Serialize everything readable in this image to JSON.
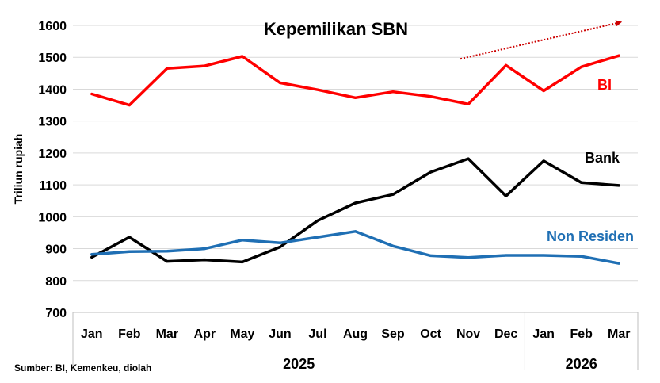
{
  "chart_data": {
    "type": "line",
    "title": "Kepemilikan SBN",
    "ylabel": "Triliun rupiah",
    "ylim": [
      700,
      1600
    ],
    "yticks": [
      700,
      800,
      900,
      1000,
      1100,
      1200,
      1300,
      1400,
      1500,
      1600
    ],
    "grid": true,
    "categories": [
      "Jan",
      "Feb",
      "Mar",
      "Apr",
      "May",
      "Jun",
      "Jul",
      "Aug",
      "Sep",
      "Oct",
      "Nov",
      "Dec",
      "Jan",
      "Feb",
      "Mar"
    ],
    "years": [
      {
        "label": "2025",
        "from": 0,
        "to": 11
      },
      {
        "label": "2026",
        "from": 12,
        "to": 14
      }
    ],
    "series": [
      {
        "name": "BI",
        "color": "#ff0000",
        "values": [
          1385,
          1350,
          1465,
          1473,
          1503,
          1420,
          1398,
          1373,
          1392,
          1377,
          1353,
          1475,
          1395,
          1470,
          1505
        ]
      },
      {
        "name": "Bank",
        "color": "#000000",
        "values": [
          873,
          936,
          860,
          865,
          858,
          905,
          988,
          1043,
          1070,
          1140,
          1182,
          1065,
          1175,
          1107,
          1098
        ]
      },
      {
        "name": "Non Residen",
        "color": "#1f6fb4",
        "values": [
          882,
          891,
          892,
          900,
          927,
          918,
          936,
          954,
          908,
          878,
          872,
          879,
          879,
          876,
          854
        ]
      }
    ],
    "trend_arrow": {
      "color": "#cc0000",
      "from": {
        "x": 10,
        "y": 1495
      },
      "to": {
        "x": 14,
        "y": 1610
      }
    },
    "source": "Sumber: BI, Kemenkeu, diolah"
  }
}
